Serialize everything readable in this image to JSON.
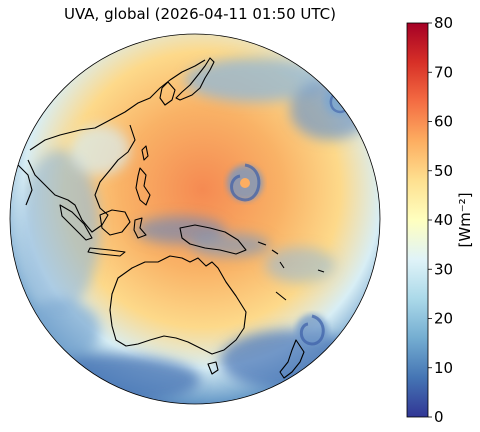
{
  "figure": {
    "title": "UVA, global (2026-04-11 01:50 UTC)"
  },
  "colorbar": {
    "unit_label": "[Wm⁻²]",
    "min": 0,
    "max": 80,
    "ticks": [
      "0",
      "10",
      "20",
      "30",
      "40",
      "50",
      "60",
      "70",
      "80"
    ],
    "colormap": "RdYlBu_r",
    "colors": [
      "#313695",
      "#4575b4",
      "#74add1",
      "#abd9e9",
      "#e0f3f8",
      "#ffffbf",
      "#fee090",
      "#fdae61",
      "#f46d43",
      "#d73027",
      "#a50026"
    ]
  },
  "map": {
    "projection": "orthographic (geostationary view)",
    "region": "Asia-Pacific / Australia / Western Pacific",
    "background_value": 42,
    "features": [
      "Japan",
      "China coast",
      "Philippines",
      "Indonesia",
      "New Guinea",
      "Australia",
      "New Zealand",
      "tropical cyclones"
    ]
  }
}
